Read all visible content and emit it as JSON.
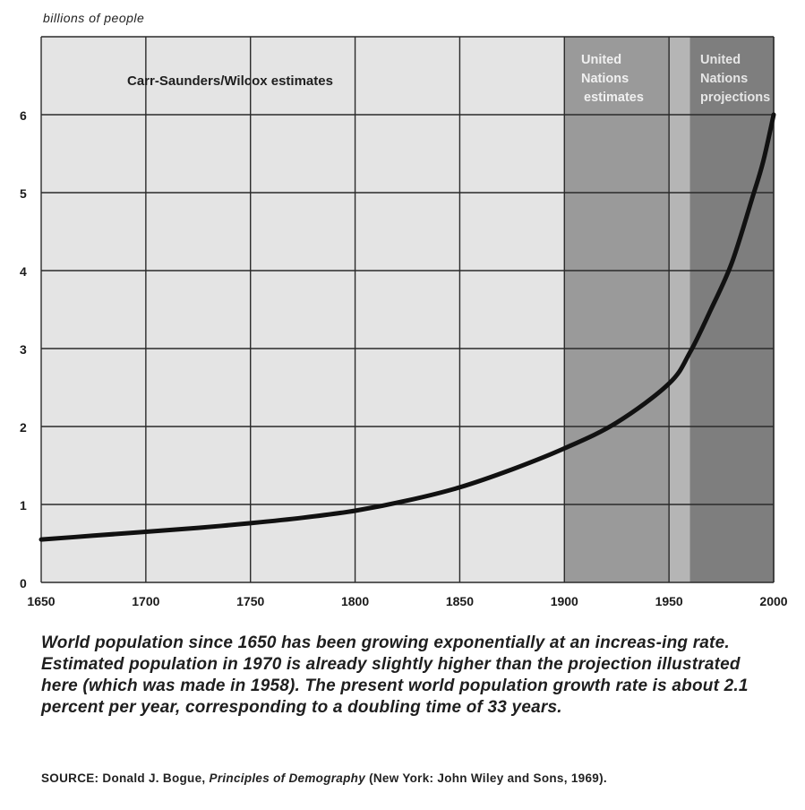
{
  "chart_data": {
    "type": "line",
    "ylabel": "billions of people",
    "xlim": [
      1650,
      2000
    ],
    "ylim": [
      0,
      7
    ],
    "x_ticks": [
      1650,
      1700,
      1750,
      1800,
      1850,
      1900,
      1950,
      2000
    ],
    "y_ticks": [
      0,
      1,
      2,
      3,
      4,
      5,
      6
    ],
    "grid": true,
    "regions": [
      {
        "label": "Carr-Saunders/Wilcox estimates",
        "from": 1650,
        "to": 1900,
        "color": "#e4e4e4"
      },
      {
        "label_lines": [
          "United",
          "Nations",
          "estimates"
        ],
        "from": 1900,
        "to": 1950,
        "color": "#9a9a9a"
      },
      {
        "label_lines": [
          "United",
          "Nations",
          "projections"
        ],
        "from": 1960,
        "to": 2000,
        "color": "#7e7e7e"
      }
    ],
    "gap_region": {
      "from": 1950,
      "to": 1960,
      "color": "#b5b5b5"
    },
    "series": [
      {
        "x": [
          1650,
          1675,
          1700,
          1725,
          1750,
          1775,
          1800,
          1825,
          1850,
          1875,
          1900,
          1925,
          1950,
          1960,
          1970,
          1980,
          1990,
          1995,
          2000
        ],
        "y": [
          0.55,
          0.6,
          0.65,
          0.7,
          0.76,
          0.83,
          0.92,
          1.05,
          1.22,
          1.45,
          1.72,
          2.05,
          2.55,
          2.95,
          3.5,
          4.1,
          4.95,
          5.4,
          6.0
        ]
      }
    ]
  },
  "caption": "World population since 1650 has been growing exponentially at an increas-ing rate. Estimated population in 1970 is already slightly higher than the projection illustrated here (which was made in 1958). The present world population growth rate is about 2.1 percent per year, corresponding to a doubling time of 33 years.",
  "source": {
    "prefix": "SOURCE: Donald J. Bogue, ",
    "book": "Principles of Demography",
    "suffix": " (New York: John Wiley and Sons, 1969)."
  }
}
